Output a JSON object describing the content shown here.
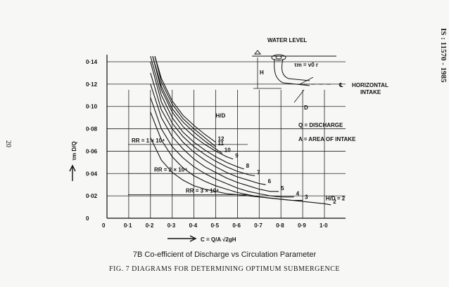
{
  "standard_ref": "IS : 11570 - 1985",
  "page_number": "20",
  "caption_b": "7B  Co-efficient of Discharge vs Circulation Parameter",
  "caption_fig": "FIG. 7    DIAGRAMS FOR DETERMINING OPTIMUM SUBMERGENCE",
  "inset": {
    "water_level": "WATER LEVEL",
    "h_label": "H",
    "d_label": "D",
    "tau_formula": "τm = v0 r",
    "cl_symbol": "℄",
    "horizontal_intake": [
      "HORIZONTAL",
      "INTAKE"
    ]
  },
  "notes": [
    "Q = DISCHARGE",
    "A = AREA OF INTAKE"
  ],
  "colors": {
    "ink": "#111111",
    "paper": "#f7f7f5"
  },
  "chart_data": {
    "type": "line",
    "xlabel": "C = Q/A √2gH",
    "ylabel": "τm D/Q",
    "xlim": [
      0,
      1.0
    ],
    "ylim": [
      0,
      0.14
    ],
    "xticks": [
      "0",
      "0·1",
      "0·2",
      "0·3",
      "0·4",
      "0·5",
      "0·6",
      "0·7",
      "0·8",
      "0·9",
      "1·0"
    ],
    "yticks": [
      "0",
      "0·02",
      "0·04",
      "0·06",
      "0·08",
      "0·10",
      "0·12",
      "0·14"
    ],
    "grid": true,
    "family_label": "H/D",
    "series": [
      {
        "name": "12",
        "points": [
          [
            0.22,
            0.145
          ],
          [
            0.25,
            0.125
          ],
          [
            0.3,
            0.105
          ],
          [
            0.35,
            0.092
          ],
          [
            0.4,
            0.083
          ],
          [
            0.45,
            0.075
          ],
          [
            0.5,
            0.068
          ]
        ]
      },
      {
        "name": "11",
        "points": [
          [
            0.22,
            0.145
          ],
          [
            0.25,
            0.122
          ],
          [
            0.3,
            0.102
          ],
          [
            0.35,
            0.089
          ],
          [
            0.4,
            0.08
          ],
          [
            0.45,
            0.072
          ],
          [
            0.5,
            0.064
          ]
        ]
      },
      {
        "name": "10",
        "points": [
          [
            0.21,
            0.145
          ],
          [
            0.25,
            0.118
          ],
          [
            0.3,
            0.098
          ],
          [
            0.35,
            0.086
          ],
          [
            0.4,
            0.077
          ],
          [
            0.45,
            0.069
          ],
          [
            0.5,
            0.062
          ],
          [
            0.53,
            0.058
          ]
        ]
      },
      {
        "name": "9",
        "points": [
          [
            0.21,
            0.145
          ],
          [
            0.25,
            0.115
          ],
          [
            0.3,
            0.095
          ],
          [
            0.35,
            0.082
          ],
          [
            0.4,
            0.073
          ],
          [
            0.45,
            0.066
          ],
          [
            0.5,
            0.06
          ],
          [
            0.55,
            0.055
          ],
          [
            0.58,
            0.053
          ]
        ]
      },
      {
        "name": "8",
        "points": [
          [
            0.2,
            0.145
          ],
          [
            0.25,
            0.11
          ],
          [
            0.3,
            0.09
          ],
          [
            0.35,
            0.077
          ],
          [
            0.4,
            0.068
          ],
          [
            0.45,
            0.061
          ],
          [
            0.5,
            0.055
          ],
          [
            0.55,
            0.05
          ],
          [
            0.6,
            0.046
          ],
          [
            0.63,
            0.044
          ]
        ]
      },
      {
        "name": "7",
        "points": [
          [
            0.2,
            0.14
          ],
          [
            0.25,
            0.104
          ],
          [
            0.3,
            0.085
          ],
          [
            0.35,
            0.073
          ],
          [
            0.4,
            0.064
          ],
          [
            0.45,
            0.057
          ],
          [
            0.5,
            0.051
          ],
          [
            0.55,
            0.046
          ],
          [
            0.6,
            0.042
          ],
          [
            0.65,
            0.039
          ],
          [
            0.68,
            0.038
          ]
        ]
      },
      {
        "name": "6",
        "points": [
          [
            0.2,
            0.13
          ],
          [
            0.25,
            0.097
          ],
          [
            0.3,
            0.08
          ],
          [
            0.35,
            0.068
          ],
          [
            0.4,
            0.059
          ],
          [
            0.45,
            0.052
          ],
          [
            0.5,
            0.046
          ],
          [
            0.55,
            0.041
          ],
          [
            0.6,
            0.037
          ],
          [
            0.65,
            0.034
          ],
          [
            0.7,
            0.031
          ],
          [
            0.73,
            0.03
          ]
        ]
      },
      {
        "name": "5",
        "points": [
          [
            0.2,
            0.12
          ],
          [
            0.25,
            0.09
          ],
          [
            0.3,
            0.073
          ],
          [
            0.35,
            0.062
          ],
          [
            0.4,
            0.053
          ],
          [
            0.45,
            0.046
          ],
          [
            0.5,
            0.041
          ],
          [
            0.55,
            0.036
          ],
          [
            0.6,
            0.032
          ],
          [
            0.65,
            0.029
          ],
          [
            0.7,
            0.026
          ],
          [
            0.75,
            0.024
          ],
          [
            0.79,
            0.024
          ]
        ]
      },
      {
        "name": "4",
        "points": [
          [
            0.2,
            0.108
          ],
          [
            0.25,
            0.08
          ],
          [
            0.3,
            0.064
          ],
          [
            0.35,
            0.054
          ],
          [
            0.4,
            0.046
          ],
          [
            0.45,
            0.04
          ],
          [
            0.5,
            0.035
          ],
          [
            0.55,
            0.031
          ],
          [
            0.6,
            0.027
          ],
          [
            0.65,
            0.024
          ],
          [
            0.7,
            0.022
          ],
          [
            0.75,
            0.02
          ],
          [
            0.8,
            0.019
          ],
          [
            0.86,
            0.019
          ]
        ]
      },
      {
        "name": "3",
        "points": [
          [
            0.2,
            0.095
          ],
          [
            0.25,
            0.07
          ],
          [
            0.3,
            0.055
          ],
          [
            0.35,
            0.045
          ],
          [
            0.4,
            0.038
          ],
          [
            0.45,
            0.033
          ],
          [
            0.5,
            0.029
          ],
          [
            0.55,
            0.026
          ],
          [
            0.6,
            0.023
          ],
          [
            0.65,
            0.021
          ],
          [
            0.7,
            0.019
          ],
          [
            0.75,
            0.018
          ],
          [
            0.8,
            0.017
          ],
          [
            0.85,
            0.016
          ],
          [
            0.9,
            0.016
          ]
        ]
      },
      {
        "name": "2",
        "points": [
          [
            0.2,
            0.072
          ],
          [
            0.25,
            0.052
          ],
          [
            0.3,
            0.041
          ],
          [
            0.35,
            0.034
          ],
          [
            0.4,
            0.029
          ],
          [
            0.45,
            0.026
          ],
          [
            0.5,
            0.024
          ],
          [
            0.55,
            0.022
          ],
          [
            0.6,
            0.021
          ],
          [
            0.65,
            0.02
          ],
          [
            0.7,
            0.019
          ],
          [
            0.75,
            0.018
          ],
          [
            0.8,
            0.017
          ],
          [
            0.85,
            0.016
          ],
          [
            0.9,
            0.015
          ],
          [
            0.95,
            0.014
          ],
          [
            1.0,
            0.013
          ],
          [
            1.03,
            0.012
          ]
        ]
      }
    ],
    "reynolds_lines": [
      {
        "label": "RR = 1 × 10⁴",
        "y": 0.066
      },
      {
        "label": "RR = 2 × 10⁴",
        "y": 0.04
      },
      {
        "label": "RR = 3 × 10⁴",
        "y": 0.021
      }
    ],
    "annotations": [
      "H/D = 2",
      "H/D"
    ]
  }
}
